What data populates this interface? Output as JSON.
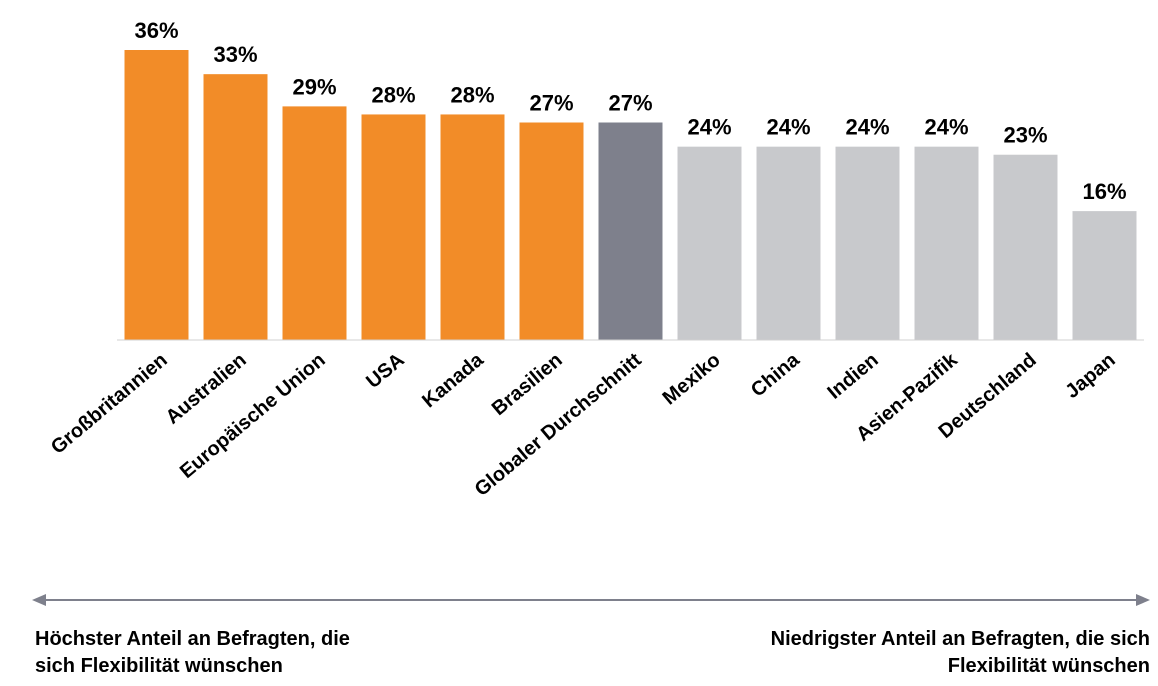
{
  "chart_data": {
    "type": "bar",
    "categories": [
      "Großbritannien",
      "Australien",
      "Europäische Union",
      "USA",
      "Kanada",
      "Brasilien",
      "Globaler Durchschnitt",
      "Mexiko",
      "China",
      "Indien",
      "Asien-Pazifik",
      "Deutschland",
      "Japan"
    ],
    "values": [
      36,
      33,
      29,
      28,
      28,
      27,
      27,
      24,
      24,
      24,
      24,
      23,
      16
    ],
    "value_labels": [
      "36%",
      "33%",
      "29%",
      "28%",
      "28%",
      "27%",
      "27%",
      "24%",
      "24%",
      "24%",
      "24%",
      "23%",
      "16%"
    ],
    "colors": [
      "#f28c28",
      "#f28c28",
      "#f28c28",
      "#f28c28",
      "#f28c28",
      "#f28c28",
      "#7e808c",
      "#c8c9cc",
      "#c8c9cc",
      "#c8c9cc",
      "#c8c9cc",
      "#c8c9cc",
      "#c8c9cc"
    ],
    "ylim": [
      0,
      36
    ],
    "annotations": [
      [
        "Höchster Anteil an Befragten, die",
        "sich Flexibilität wünschen"
      ],
      [
        "Niedrigster Anteil an Befragten, die sich",
        "Flexibilität wünschen"
      ]
    ]
  }
}
